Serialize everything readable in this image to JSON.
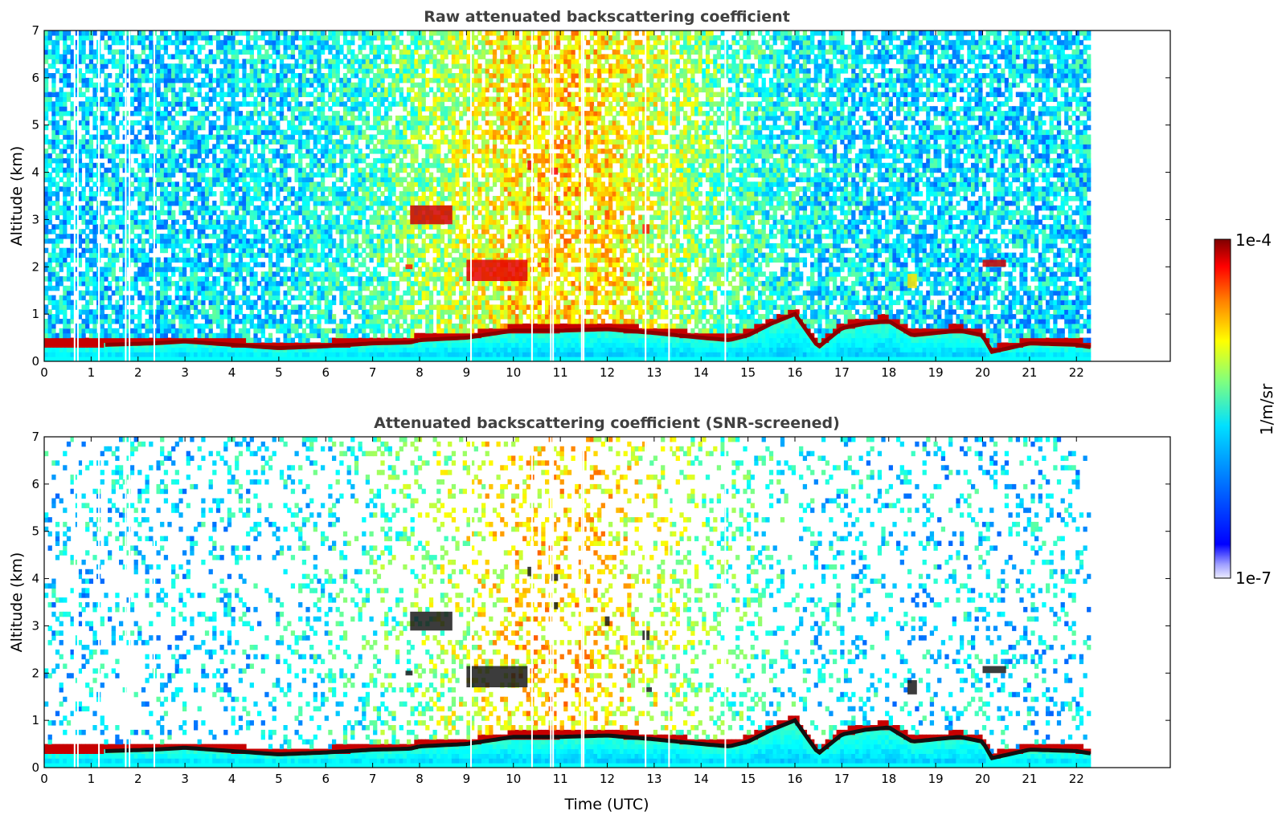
{
  "colormap": [
    "#00007f",
    "#0000ff",
    "#007fff",
    "#00ffff",
    "#7fff7f",
    "#ffff00",
    "#ff7f00",
    "#ff0000",
    "#7f0000"
  ],
  "chart_data": [
    {
      "type": "heatmap",
      "title": "Raw attenuated backscattering coefficient",
      "xlabel": "",
      "ylabel": "Altitude (km)",
      "xlim": [
        0,
        24
      ],
      "ylim": [
        0,
        7
      ],
      "x_ticks": [
        "0",
        "1",
        "2",
        "3",
        "4",
        "5",
        "6",
        "7",
        "8",
        "9",
        "10",
        "11",
        "12",
        "13",
        "14",
        "15",
        "16",
        "17",
        "18",
        "19",
        "20",
        "21",
        "22"
      ],
      "y_ticks": [
        "0",
        "1",
        "2",
        "3",
        "4",
        "5",
        "6",
        "7"
      ],
      "data_end_time": 22.3,
      "boundary_layer_top_km": [
        [
          1.3,
          0.35
        ],
        [
          2.3,
          0.38
        ],
        [
          3.0,
          0.42
        ],
        [
          4.0,
          0.35
        ],
        [
          5.0,
          0.28
        ],
        [
          6.0,
          0.32
        ],
        [
          7.0,
          0.38
        ],
        [
          7.8,
          0.4
        ],
        [
          8.0,
          0.45
        ],
        [
          9.0,
          0.5
        ],
        [
          10.0,
          0.65
        ],
        [
          11.0,
          0.65
        ],
        [
          12.0,
          0.68
        ],
        [
          13.0,
          0.6
        ],
        [
          14.0,
          0.5
        ],
        [
          14.6,
          0.45
        ],
        [
          15.0,
          0.55
        ],
        [
          15.5,
          0.8
        ],
        [
          16.0,
          1.0
        ],
        [
          16.5,
          0.3
        ],
        [
          17.0,
          0.7
        ],
        [
          17.5,
          0.8
        ],
        [
          18.0,
          0.85
        ],
        [
          18.5,
          0.55
        ],
        [
          19.0,
          0.6
        ],
        [
          19.5,
          0.65
        ],
        [
          20.0,
          0.55
        ],
        [
          20.2,
          0.2
        ],
        [
          21.0,
          0.38
        ],
        [
          22.0,
          0.35
        ],
        [
          22.3,
          0.3
        ]
      ],
      "elevated_layers": [
        {
          "x": [
            7.8,
            8.7
          ],
          "y": [
            2.9,
            3.3
          ],
          "level": 0.92
        },
        {
          "x": [
            9.0,
            10.3
          ],
          "y": [
            1.7,
            2.15
          ],
          "level": 0.9
        },
        {
          "x": [
            10.3,
            10.4
          ],
          "y": [
            4.05,
            4.25
          ],
          "level": 0.9
        },
        {
          "x": [
            10.8,
            10.95
          ],
          "y": [
            3.95,
            4.1
          ],
          "level": 0.88
        },
        {
          "x": [
            10.85,
            10.95
          ],
          "y": [
            3.35,
            3.5
          ],
          "level": 0.82
        },
        {
          "x": [
            11.95,
            12.05
          ],
          "y": [
            3.0,
            3.2
          ],
          "level": 0.8
        },
        {
          "x": [
            12.75,
            12.9
          ],
          "y": [
            2.7,
            2.9
          ],
          "level": 0.85
        },
        {
          "x": [
            12.8,
            12.95
          ],
          "y": [
            1.6,
            1.7
          ],
          "level": 0.8
        },
        {
          "x": [
            7.7,
            7.85
          ],
          "y": [
            1.95,
            2.05
          ],
          "level": 0.85
        },
        {
          "x": [
            20.0,
            20.5
          ],
          "y": [
            2.0,
            2.15
          ],
          "level": 0.92
        },
        {
          "x": [
            18.4,
            18.6
          ],
          "y": [
            1.55,
            1.85
          ],
          "level": 0.65
        }
      ],
      "colorbar": {
        "min_label": "1e-7",
        "max_label": "1e-4",
        "unit": "1/m/sr"
      }
    },
    {
      "type": "heatmap",
      "title": "Attenuated backscattering coefficient (SNR-screened)",
      "xlabel": "Time (UTC)",
      "ylabel": "Altitude (km)",
      "xlim": [
        0,
        24
      ],
      "ylim": [
        0,
        7
      ],
      "x_ticks": [
        "0",
        "1",
        "2",
        "3",
        "4",
        "5",
        "6",
        "7",
        "8",
        "9",
        "10",
        "11",
        "12",
        "13",
        "14",
        "15",
        "16",
        "17",
        "18",
        "19",
        "20",
        "21",
        "22"
      ],
      "y_ticks": [
        "0",
        "1",
        "2",
        "3",
        "4",
        "5",
        "6",
        "7"
      ],
      "data_end_time": 22.3
    }
  ],
  "labels": {
    "title_top": "Raw attenuated backscattering coefficient",
    "title_bottom": "Attenuated backscattering coefficient (SNR-screened)",
    "ylabel": "Altitude (km)",
    "xlabel": "Time (UTC)",
    "cb_max": "1e-4",
    "cb_min": "1e-7",
    "cb_unit": "1/m/sr"
  }
}
